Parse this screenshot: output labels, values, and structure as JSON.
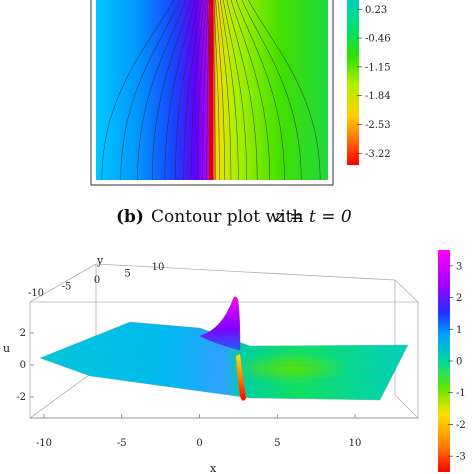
{
  "caption": {
    "tag": "(b)",
    "text": "Contour plot with",
    "math": "z = t = 0"
  },
  "colors": {
    "colormap": [
      "#ff0000",
      "#ff8c00",
      "#ffd700",
      "#c8f000",
      "#55e000",
      "#00e060",
      "#00ccaa",
      "#00b4ff",
      "#2040ff",
      "#7000ff",
      "#c000ff",
      "#ff00ff"
    ]
  },
  "chart_data": [
    {
      "type": "heatmap",
      "subtype": "contour",
      "colorbar": {
        "ticks": [
          "0.23",
          "-0.46",
          "-1.15",
          "-1.84",
          "-2.53",
          "-3.22"
        ],
        "range": [
          -3.5,
          0.5
        ]
      }
    },
    {
      "type": "surface",
      "xlabel": "x",
      "ylabel": "y",
      "zlabel": "u",
      "x_ticks": [
        "-10",
        "-5",
        "0",
        "5",
        "10"
      ],
      "y_ticks": [
        "-10",
        "-5",
        "0",
        "5",
        "10"
      ],
      "z_ticks": [
        "2",
        "0",
        "-2"
      ],
      "colorbar": {
        "ticks": [
          "3",
          "2",
          "1",
          "0",
          "-1",
          "-2",
          "-3"
        ],
        "range": [
          -3.5,
          3.5
        ]
      },
      "peak": {
        "x": 0,
        "y": 0,
        "u": 3.2
      },
      "trough": {
        "x": 0,
        "y": 0,
        "u": -3.2
      }
    }
  ]
}
